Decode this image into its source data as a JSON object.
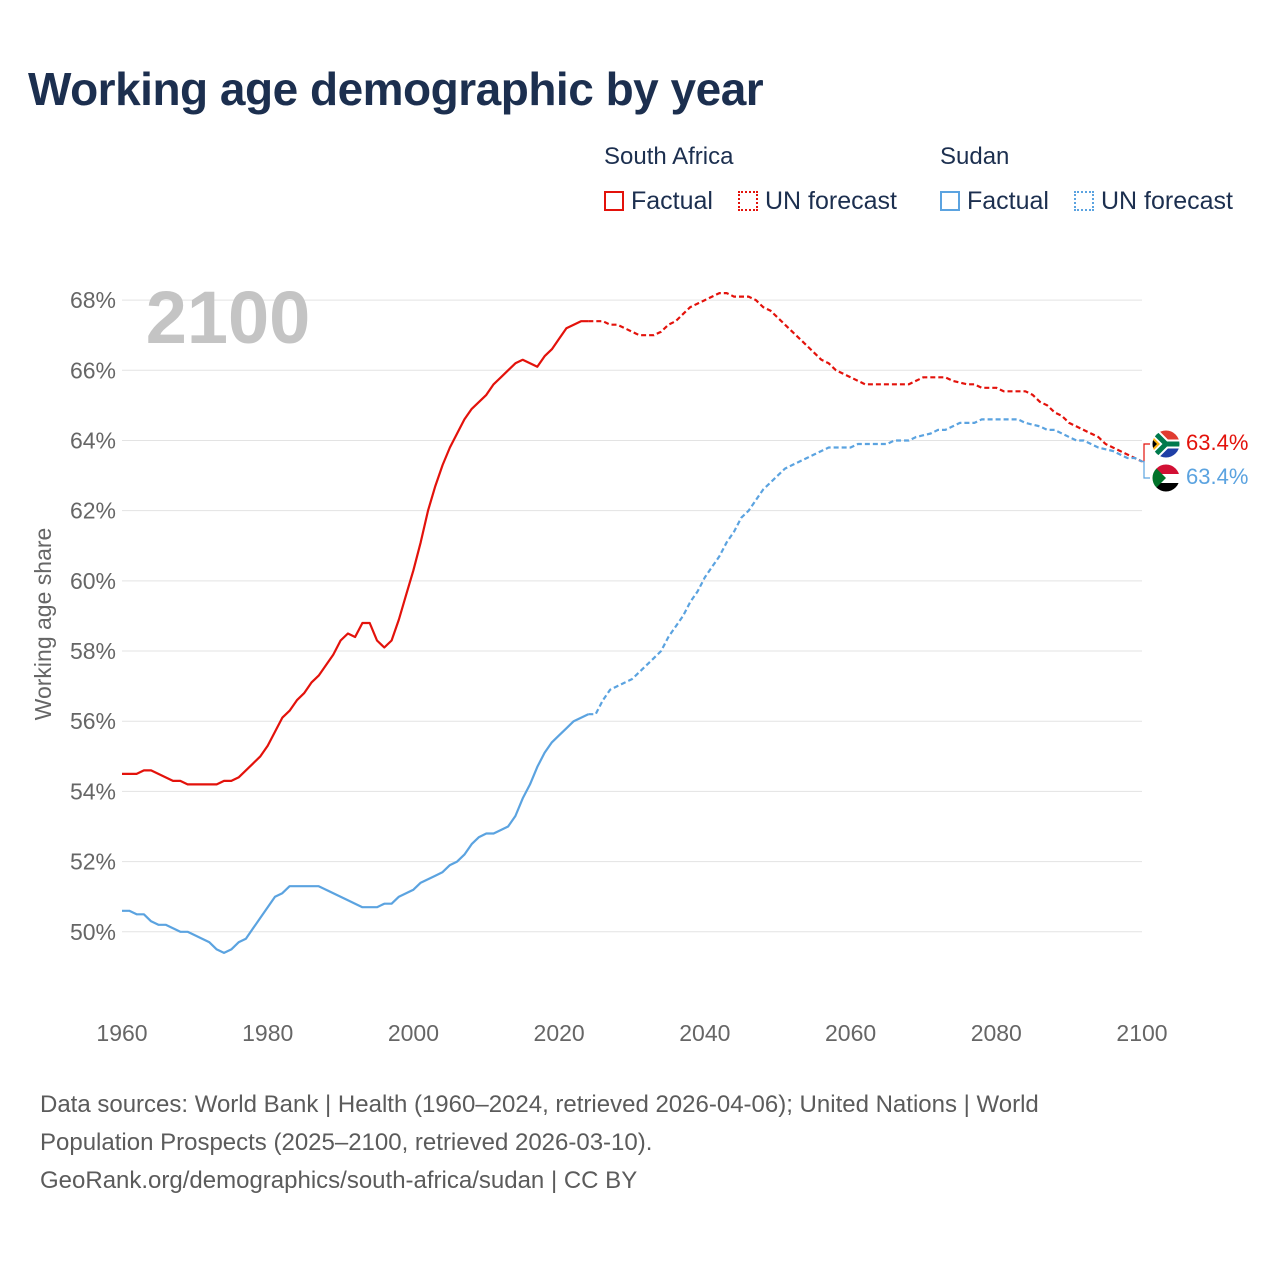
{
  "title": "Working age demographic by year",
  "legend": {
    "groups": [
      {
        "name": "South Africa",
        "color": "#e3120b",
        "factual_label": "Factual",
        "forecast_label": "UN forecast"
      },
      {
        "name": "Sudan",
        "color": "#5ba3e0",
        "factual_label": "Factual",
        "forecast_label": "UN forecast"
      }
    ]
  },
  "chart_data": {
    "type": "line",
    "title": "Working age demographic by year",
    "ylabel": "Working age share",
    "xlabel": "",
    "year_watermark": "2100",
    "xlim": [
      1960,
      2100
    ],
    "ylim": [
      48,
      69
    ],
    "x_ticks": [
      1960,
      1980,
      2000,
      2020,
      2040,
      2060,
      2080,
      2100
    ],
    "y_ticks": [
      50,
      52,
      54,
      56,
      58,
      60,
      62,
      64,
      66,
      68
    ],
    "y_tick_labels": [
      "50%",
      "52%",
      "54%",
      "56%",
      "58%",
      "60%",
      "62%",
      "64%",
      "66%",
      "68%"
    ],
    "grid": true,
    "series": [
      {
        "name": "South Africa",
        "color": "#e3120b",
        "end_label": "63.4%",
        "flag": "south-africa",
        "factual_years": [
          1960,
          2024
        ],
        "forecast_years": [
          2025,
          2100
        ],
        "points": [
          [
            1960,
            54.5
          ],
          [
            1962,
            54.5
          ],
          [
            1963,
            54.6
          ],
          [
            1964,
            54.6
          ],
          [
            1966,
            54.4
          ],
          [
            1967,
            54.3
          ],
          [
            1968,
            54.3
          ],
          [
            1969,
            54.2
          ],
          [
            1973,
            54.2
          ],
          [
            1974,
            54.3
          ],
          [
            1975,
            54.3
          ],
          [
            1976,
            54.4
          ],
          [
            1978,
            54.8
          ],
          [
            1979,
            55.0
          ],
          [
            1980,
            55.3
          ],
          [
            1981,
            55.7
          ],
          [
            1982,
            56.1
          ],
          [
            1983,
            56.3
          ],
          [
            1984,
            56.6
          ],
          [
            1985,
            56.8
          ],
          [
            1986,
            57.1
          ],
          [
            1987,
            57.3
          ],
          [
            1988,
            57.6
          ],
          [
            1989,
            57.9
          ],
          [
            1990,
            58.3
          ],
          [
            1991,
            58.5
          ],
          [
            1992,
            58.4
          ],
          [
            1993,
            58.8
          ],
          [
            1994,
            58.8
          ],
          [
            1995,
            58.3
          ],
          [
            1996,
            58.1
          ],
          [
            1997,
            58.3
          ],
          [
            1998,
            58.9
          ],
          [
            1999,
            59.6
          ],
          [
            2000,
            60.3
          ],
          [
            2001,
            61.1
          ],
          [
            2002,
            62.0
          ],
          [
            2003,
            62.7
          ],
          [
            2004,
            63.3
          ],
          [
            2005,
            63.8
          ],
          [
            2006,
            64.2
          ],
          [
            2007,
            64.6
          ],
          [
            2008,
            64.9
          ],
          [
            2009,
            65.1
          ],
          [
            2010,
            65.3
          ],
          [
            2011,
            65.6
          ],
          [
            2012,
            65.8
          ],
          [
            2013,
            66.0
          ],
          [
            2014,
            66.2
          ],
          [
            2015,
            66.3
          ],
          [
            2016,
            66.2
          ],
          [
            2017,
            66.1
          ],
          [
            2018,
            66.4
          ],
          [
            2019,
            66.6
          ],
          [
            2020,
            66.9
          ],
          [
            2021,
            67.2
          ],
          [
            2022,
            67.3
          ],
          [
            2023,
            67.4
          ],
          [
            2024,
            67.4
          ],
          [
            2025,
            67.4
          ],
          [
            2026,
            67.4
          ],
          [
            2027,
            67.3
          ],
          [
            2028,
            67.3
          ],
          [
            2029,
            67.2
          ],
          [
            2030,
            67.1
          ],
          [
            2031,
            67.0
          ],
          [
            2033,
            67.0
          ],
          [
            2034,
            67.1
          ],
          [
            2035,
            67.3
          ],
          [
            2036,
            67.4
          ],
          [
            2037,
            67.6
          ],
          [
            2038,
            67.8
          ],
          [
            2039,
            67.9
          ],
          [
            2040,
            68.0
          ],
          [
            2041,
            68.1
          ],
          [
            2042,
            68.2
          ],
          [
            2043,
            68.2
          ],
          [
            2044,
            68.1
          ],
          [
            2046,
            68.1
          ],
          [
            2047,
            68.0
          ],
          [
            2048,
            67.8
          ],
          [
            2049,
            67.7
          ],
          [
            2050,
            67.5
          ],
          [
            2051,
            67.3
          ],
          [
            2052,
            67.1
          ],
          [
            2053,
            66.9
          ],
          [
            2054,
            66.7
          ],
          [
            2055,
            66.5
          ],
          [
            2056,
            66.3
          ],
          [
            2057,
            66.2
          ],
          [
            2058,
            66.0
          ],
          [
            2059,
            65.9
          ],
          [
            2060,
            65.8
          ],
          [
            2061,
            65.7
          ],
          [
            2062,
            65.6
          ],
          [
            2068,
            65.6
          ],
          [
            2069,
            65.7
          ],
          [
            2070,
            65.8
          ],
          [
            2073,
            65.8
          ],
          [
            2074,
            65.7
          ],
          [
            2076,
            65.6
          ],
          [
            2077,
            65.6
          ],
          [
            2078,
            65.5
          ],
          [
            2080,
            65.5
          ],
          [
            2081,
            65.4
          ],
          [
            2084,
            65.4
          ],
          [
            2085,
            65.3
          ],
          [
            2086,
            65.1
          ],
          [
            2087,
            65.0
          ],
          [
            2088,
            64.8
          ],
          [
            2089,
            64.7
          ],
          [
            2090,
            64.5
          ],
          [
            2091,
            64.4
          ],
          [
            2093,
            64.2
          ],
          [
            2094,
            64.1
          ],
          [
            2095,
            63.9
          ],
          [
            2096,
            63.8
          ],
          [
            2097,
            63.7
          ],
          [
            2098,
            63.6
          ],
          [
            2099,
            63.5
          ],
          [
            2100,
            63.4
          ]
        ]
      },
      {
        "name": "Sudan",
        "color": "#5ba3e0",
        "end_label": "63.4%",
        "flag": "sudan",
        "factual_years": [
          1960,
          2024
        ],
        "forecast_years": [
          2025,
          2100
        ],
        "points": [
          [
            1960,
            50.6
          ],
          [
            1961,
            50.6
          ],
          [
            1962,
            50.5
          ],
          [
            1963,
            50.5
          ],
          [
            1964,
            50.3
          ],
          [
            1965,
            50.2
          ],
          [
            1966,
            50.2
          ],
          [
            1967,
            50.1
          ],
          [
            1968,
            50.0
          ],
          [
            1969,
            50.0
          ],
          [
            1970,
            49.9
          ],
          [
            1971,
            49.8
          ],
          [
            1972,
            49.7
          ],
          [
            1973,
            49.5
          ],
          [
            1974,
            49.4
          ],
          [
            1975,
            49.5
          ],
          [
            1976,
            49.7
          ],
          [
            1977,
            49.8
          ],
          [
            1978,
            50.1
          ],
          [
            1979,
            50.4
          ],
          [
            1980,
            50.7
          ],
          [
            1981,
            51.0
          ],
          [
            1982,
            51.1
          ],
          [
            1983,
            51.3
          ],
          [
            1987,
            51.3
          ],
          [
            1988,
            51.2
          ],
          [
            1989,
            51.1
          ],
          [
            1990,
            51.0
          ],
          [
            1991,
            50.9
          ],
          [
            1992,
            50.8
          ],
          [
            1993,
            50.7
          ],
          [
            1995,
            50.7
          ],
          [
            1996,
            50.8
          ],
          [
            1997,
            50.8
          ],
          [
            1998,
            51.0
          ],
          [
            1999,
            51.1
          ],
          [
            2000,
            51.2
          ],
          [
            2001,
            51.4
          ],
          [
            2002,
            51.5
          ],
          [
            2003,
            51.6
          ],
          [
            2004,
            51.7
          ],
          [
            2005,
            51.9
          ],
          [
            2006,
            52.0
          ],
          [
            2007,
            52.2
          ],
          [
            2008,
            52.5
          ],
          [
            2009,
            52.7
          ],
          [
            2010,
            52.8
          ],
          [
            2011,
            52.8
          ],
          [
            2012,
            52.9
          ],
          [
            2013,
            53.0
          ],
          [
            2014,
            53.3
          ],
          [
            2015,
            53.8
          ],
          [
            2016,
            54.2
          ],
          [
            2017,
            54.7
          ],
          [
            2018,
            55.1
          ],
          [
            2019,
            55.4
          ],
          [
            2020,
            55.6
          ],
          [
            2021,
            55.8
          ],
          [
            2022,
            56.0
          ],
          [
            2023,
            56.1
          ],
          [
            2024,
            56.2
          ],
          [
            2025,
            56.2
          ],
          [
            2026,
            56.6
          ],
          [
            2027,
            56.9
          ],
          [
            2028,
            57.0
          ],
          [
            2029,
            57.1
          ],
          [
            2030,
            57.2
          ],
          [
            2031,
            57.4
          ],
          [
            2032,
            57.6
          ],
          [
            2033,
            57.8
          ],
          [
            2034,
            58.0
          ],
          [
            2035,
            58.4
          ],
          [
            2036,
            58.7
          ],
          [
            2037,
            59.0
          ],
          [
            2038,
            59.4
          ],
          [
            2039,
            59.7
          ],
          [
            2040,
            60.1
          ],
          [
            2041,
            60.4
          ],
          [
            2042,
            60.7
          ],
          [
            2043,
            61.1
          ],
          [
            2044,
            61.4
          ],
          [
            2045,
            61.8
          ],
          [
            2046,
            62.0
          ],
          [
            2047,
            62.3
          ],
          [
            2048,
            62.6
          ],
          [
            2049,
            62.8
          ],
          [
            2050,
            63.0
          ],
          [
            2051,
            63.2
          ],
          [
            2052,
            63.3
          ],
          [
            2053,
            63.4
          ],
          [
            2054,
            63.5
          ],
          [
            2055,
            63.6
          ],
          [
            2056,
            63.7
          ],
          [
            2057,
            63.8
          ],
          [
            2060,
            63.8
          ],
          [
            2061,
            63.9
          ],
          [
            2065,
            63.9
          ],
          [
            2066,
            64.0
          ],
          [
            2068,
            64.0
          ],
          [
            2069,
            64.1
          ],
          [
            2071,
            64.2
          ],
          [
            2072,
            64.3
          ],
          [
            2073,
            64.3
          ],
          [
            2074,
            64.4
          ],
          [
            2075,
            64.5
          ],
          [
            2077,
            64.5
          ],
          [
            2078,
            64.6
          ],
          [
            2083,
            64.6
          ],
          [
            2084,
            64.5
          ],
          [
            2086,
            64.4
          ],
          [
            2087,
            64.3
          ],
          [
            2088,
            64.3
          ],
          [
            2089,
            64.2
          ],
          [
            2090,
            64.1
          ],
          [
            2091,
            64.0
          ],
          [
            2092,
            64.0
          ],
          [
            2093,
            63.9
          ],
          [
            2094,
            63.8
          ],
          [
            2096,
            63.7
          ],
          [
            2097,
            63.6
          ],
          [
            2098,
            63.5
          ],
          [
            2099,
            63.5
          ],
          [
            2100,
            63.4
          ]
        ]
      }
    ]
  },
  "footer": {
    "line1": "Data sources: World Bank | Health (1960–2024, retrieved 2026-04-06); United Nations | World",
    "line2": "Population Prospects (2025–2100, retrieved 2026-03-10).",
    "line3": "GeoRank.org/demographics/south-africa/sudan | CC BY"
  }
}
